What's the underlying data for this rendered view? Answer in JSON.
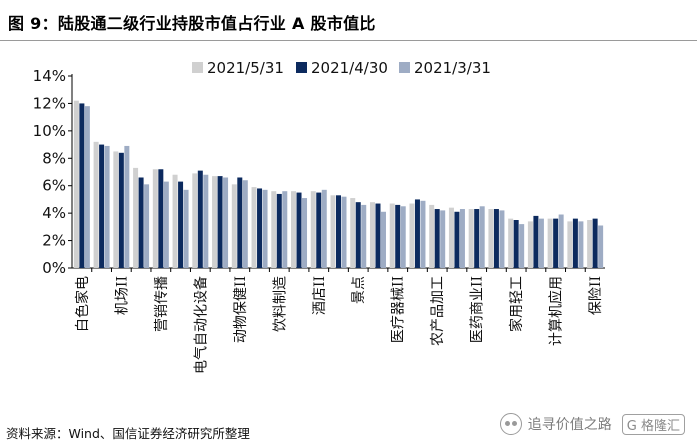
{
  "header": {
    "title": "图 9：陆股通二级行业持股市值占行业 A 股市值比"
  },
  "footer": {
    "source": "资料来源：Wind、国信证券经济研究所整理",
    "watermark_text": "追寻价值之路",
    "watermark_logo": "G 格隆汇"
  },
  "chart_data": {
    "type": "bar",
    "title": "",
    "xlabel": "",
    "ylabel": "",
    "ylim": [
      0,
      14
    ],
    "y_ticks": [
      "0%",
      "2%",
      "4%",
      "6%",
      "8%",
      "10%",
      "12%",
      "14%"
    ],
    "y_tick_values": [
      0,
      2,
      4,
      6,
      8,
      10,
      12,
      14
    ],
    "grid": false,
    "legend_position": "top-center",
    "series_colors": [
      "#d0d0d0",
      "#0c2a5e",
      "#9eacc4"
    ],
    "categories": [
      "白色家电",
      "",
      "机场II",
      "",
      "营销传播",
      "",
      "电气自动化设备",
      "",
      "动物保健II",
      "",
      "饮料制造",
      "",
      "酒店II",
      "",
      "景点",
      "",
      "医疗器械II",
      "",
      "农产品加工",
      "",
      "医药商业II",
      "",
      "家用轻工",
      "",
      "计算机应用",
      "",
      "保险II"
    ],
    "series": [
      {
        "name": "2021/5/31",
        "values": [
          12.2,
          9.2,
          8.5,
          7.3,
          7.2,
          6.8,
          6.9,
          6.7,
          6.1,
          5.9,
          5.6,
          5.6,
          5.6,
          5.3,
          5.1,
          4.8,
          4.7,
          4.7,
          4.6,
          4.4,
          4.3,
          4.3,
          3.6,
          3.4,
          3.6,
          3.4,
          3.5
        ]
      },
      {
        "name": "2021/4/30",
        "values": [
          12.0,
          9.0,
          8.4,
          6.6,
          7.2,
          6.3,
          7.1,
          6.7,
          6.6,
          5.8,
          5.4,
          5.5,
          5.5,
          5.3,
          4.8,
          4.7,
          4.6,
          5.0,
          4.3,
          4.1,
          4.3,
          4.3,
          3.5,
          3.8,
          3.6,
          3.6,
          3.6
        ]
      },
      {
        "name": "2021/3/31",
        "values": [
          11.8,
          8.9,
          8.9,
          6.1,
          6.3,
          5.7,
          6.8,
          6.6,
          6.4,
          5.7,
          5.6,
          5.1,
          5.7,
          5.2,
          4.6,
          4.1,
          4.5,
          4.9,
          4.2,
          4.3,
          4.5,
          4.2,
          3.2,
          3.6,
          3.9,
          3.4,
          3.1
        ]
      }
    ]
  }
}
